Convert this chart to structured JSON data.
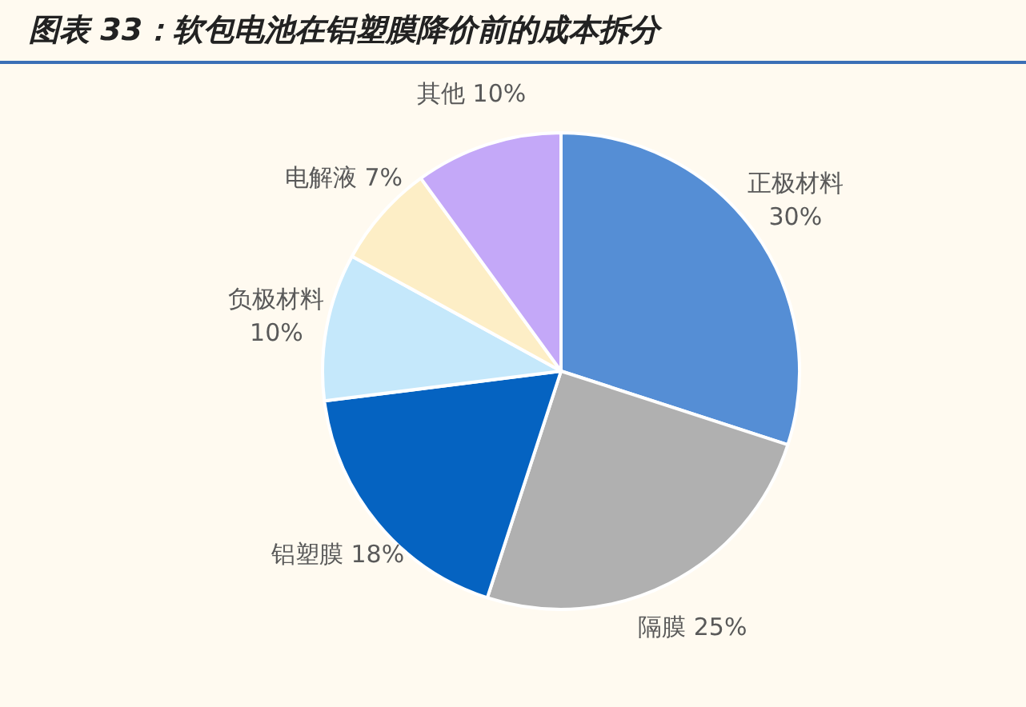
{
  "chart_data": {
    "type": "pie",
    "title": "图表 33：软包电池在铝塑膜降价前的成本拆分",
    "categories": [
      "正极材料",
      "隔膜",
      "铝塑膜",
      "负极材料",
      "电解液",
      "其他"
    ],
    "values": [
      30,
      25,
      18,
      10,
      7,
      10
    ],
    "value_labels": [
      "30%",
      "25%",
      "18%",
      "10%",
      "7%",
      "10%"
    ],
    "colors": [
      "#558ed5",
      "#b0b0b0",
      "#0563c1",
      "#c5e8fb",
      "#fdeec6",
      "#c4a8f8"
    ],
    "legend": false
  }
}
